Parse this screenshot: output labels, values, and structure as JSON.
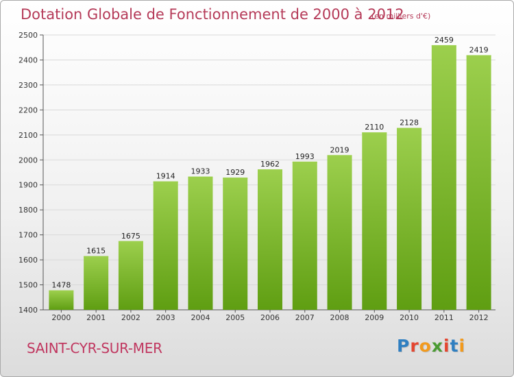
{
  "header": {
    "title": "Dotation Globale de Fonctionnement de 2000 à 2012",
    "unit": "(en milliers d'€)"
  },
  "footer": {
    "place": "SAINT-CYR-SUR-MER",
    "logo_letters": [
      "P",
      "r",
      "o",
      "x",
      "i",
      "t",
      "i"
    ],
    "logo_colors": [
      "#2f7fc1",
      "#e4452f",
      "#f29a1d",
      "#4a9b32",
      "#e4452f",
      "#2f7fc1",
      "#f29a1d"
    ]
  },
  "colors": {
    "title": "#b53a58",
    "bar_top": "#9ccf4d",
    "bar_bottom": "#5f9e12",
    "grid": "#d9d9d9"
  },
  "chart_data": {
    "type": "bar",
    "title": "Dotation Globale de Fonctionnement de 2000 à 2012",
    "subtitle": "(en milliers d'€)",
    "xlabel": "",
    "ylabel": "",
    "categories": [
      "2000",
      "2001",
      "2002",
      "2003",
      "2004",
      "2005",
      "2006",
      "2007",
      "2008",
      "2009",
      "2010",
      "2011",
      "2012"
    ],
    "values": [
      1478,
      1615,
      1675,
      1914,
      1933,
      1929,
      1962,
      1993,
      2019,
      2110,
      2128,
      2459,
      2419
    ],
    "ylim": [
      1400,
      2500
    ],
    "yticks": [
      1400,
      1500,
      1600,
      1700,
      1800,
      1900,
      2000,
      2100,
      2200,
      2300,
      2400,
      2500
    ],
    "grid": true,
    "show_value_labels": true
  }
}
